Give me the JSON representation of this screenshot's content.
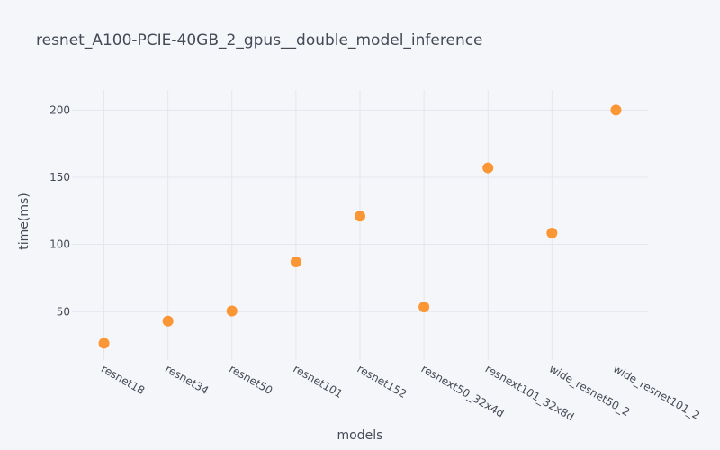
{
  "chart_data": {
    "type": "scatter",
    "title": "resnet_A100-PCIE-40GB_2_gpus__double_model_inference",
    "xlabel": "models",
    "ylabel": "time(ms)",
    "categories": [
      "resnet18",
      "resnet34",
      "resnet50",
      "resnet101",
      "resnet152",
      "resnext50_32x4d",
      "resnext101_32x8d",
      "wide_resnet50_2",
      "wide_resnet101_2"
    ],
    "values": [
      26.5,
      43,
      50.5,
      87,
      121,
      53.5,
      157,
      108.5,
      200
    ],
    "ylim": [
      14,
      215
    ],
    "yticks": [
      50,
      100,
      150,
      200
    ],
    "grid": true,
    "marker_color": "#fa9634"
  }
}
